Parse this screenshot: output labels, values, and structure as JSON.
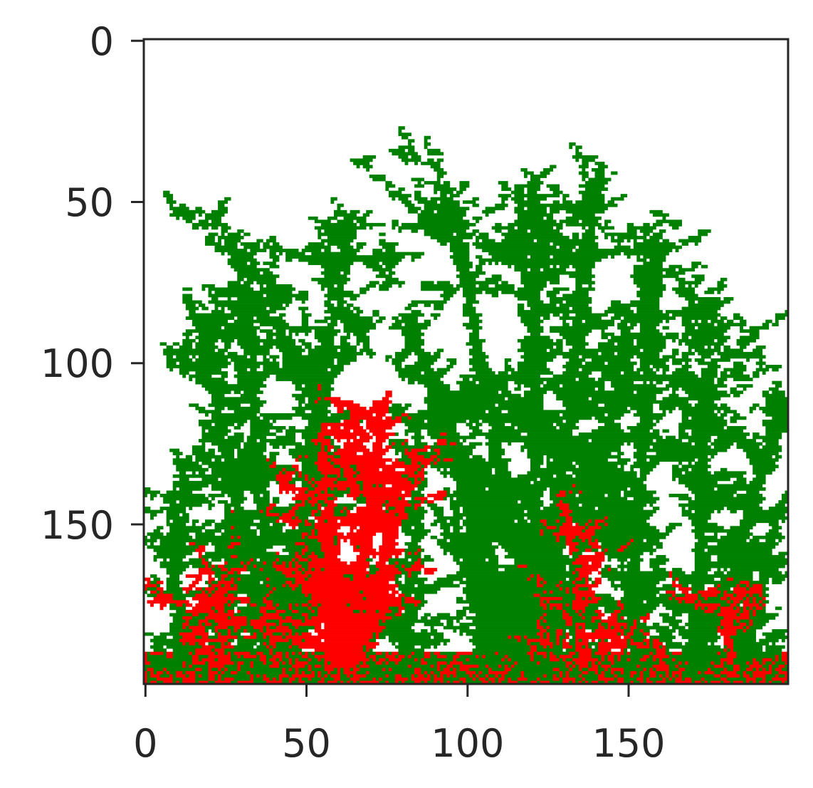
{
  "chart_data": {
    "type": "heatmap",
    "title": "",
    "xlabel": "",
    "ylabel": "",
    "xlim": [
      0,
      200
    ],
    "ylim": [
      200,
      0
    ],
    "y_axis_inverted": true,
    "x_ticks": [
      0,
      50,
      100,
      150
    ],
    "x_tick_labels": [
      "0",
      "50",
      "100",
      "150"
    ],
    "y_ticks": [
      0,
      50,
      100,
      150
    ],
    "y_tick_labels": [
      "0",
      "50",
      "100",
      "150"
    ],
    "grid": false,
    "colors": {
      "background": "#ffffff",
      "species_a": "#008000",
      "species_b": "#ff0000"
    },
    "seed_band_rows": [
      190,
      200
    ],
    "clusters": [
      {
        "species": "species_a",
        "root": [
          10,
          196
        ],
        "tip": [
          8,
          140
        ]
      },
      {
        "species": "species_a",
        "root": [
          25,
          195
        ],
        "tip": [
          25,
          148
        ]
      },
      {
        "species": "species_a",
        "root": [
          40,
          196
        ],
        "tip": [
          15,
          80
        ]
      },
      {
        "species": "species_a",
        "root": [
          40,
          196
        ],
        "tip": [
          30,
          65
        ]
      },
      {
        "species": "species_a",
        "root": [
          42,
          196
        ],
        "tip": [
          62,
          58
        ]
      },
      {
        "species": "species_a",
        "root": [
          45,
          196
        ],
        "tip": [
          55,
          92
        ]
      },
      {
        "species": "species_a",
        "root": [
          80,
          196
        ],
        "tip": [
          85,
          135
        ]
      },
      {
        "species": "species_a",
        "root": [
          105,
          196
        ],
        "tip": [
          100,
          140
        ]
      },
      {
        "species": "species_a",
        "root": [
          122,
          196
        ],
        "tip": [
          95,
          50
        ]
      },
      {
        "species": "species_a",
        "root": [
          122,
          196
        ],
        "tip": [
          120,
          42
        ]
      },
      {
        "species": "species_a",
        "root": [
          122,
          196
        ],
        "tip": [
          140,
          45
        ]
      },
      {
        "species": "species_a",
        "root": [
          120,
          196
        ],
        "tip": [
          80,
          85
        ]
      },
      {
        "species": "species_a",
        "root": [
          118,
          196
        ],
        "tip": [
          90,
          110
        ]
      },
      {
        "species": "species_a",
        "root": [
          125,
          196
        ],
        "tip": [
          150,
          95
        ]
      },
      {
        "species": "species_a",
        "root": [
          150,
          196
        ],
        "tip": [
          158,
          62
        ]
      },
      {
        "species": "species_a",
        "root": [
          155,
          196
        ],
        "tip": [
          140,
          120
        ]
      },
      {
        "species": "species_a",
        "root": [
          170,
          196
        ],
        "tip": [
          175,
          80
        ]
      },
      {
        "species": "species_a",
        "root": [
          172,
          196
        ],
        "tip": [
          195,
          120
        ]
      },
      {
        "species": "species_a",
        "root": [
          185,
          196
        ],
        "tip": [
          195,
          145
        ]
      },
      {
        "species": "species_b",
        "root": [
          25,
          194
        ],
        "tip": [
          23,
          168
        ]
      },
      {
        "species": "species_b",
        "root": [
          40,
          194
        ],
        "tip": [
          38,
          178
        ]
      },
      {
        "species": "species_b",
        "root": [
          60,
          194
        ],
        "tip": [
          55,
          118
        ]
      },
      {
        "species": "species_b",
        "root": [
          62,
          194
        ],
        "tip": [
          72,
          118
        ]
      },
      {
        "species": "species_b",
        "root": [
          64,
          194
        ],
        "tip": [
          85,
          125
        ]
      },
      {
        "species": "species_b",
        "root": [
          60,
          194
        ],
        "tip": [
          52,
          160
        ]
      },
      {
        "species": "species_b",
        "root": [
          135,
          194
        ],
        "tip": [
          135,
          160
        ]
      },
      {
        "species": "species_b",
        "root": [
          160,
          194
        ],
        "tip": [
          158,
          187
        ]
      },
      {
        "species": "species_b",
        "root": [
          180,
          194
        ],
        "tip": [
          180,
          175
        ]
      }
    ]
  }
}
